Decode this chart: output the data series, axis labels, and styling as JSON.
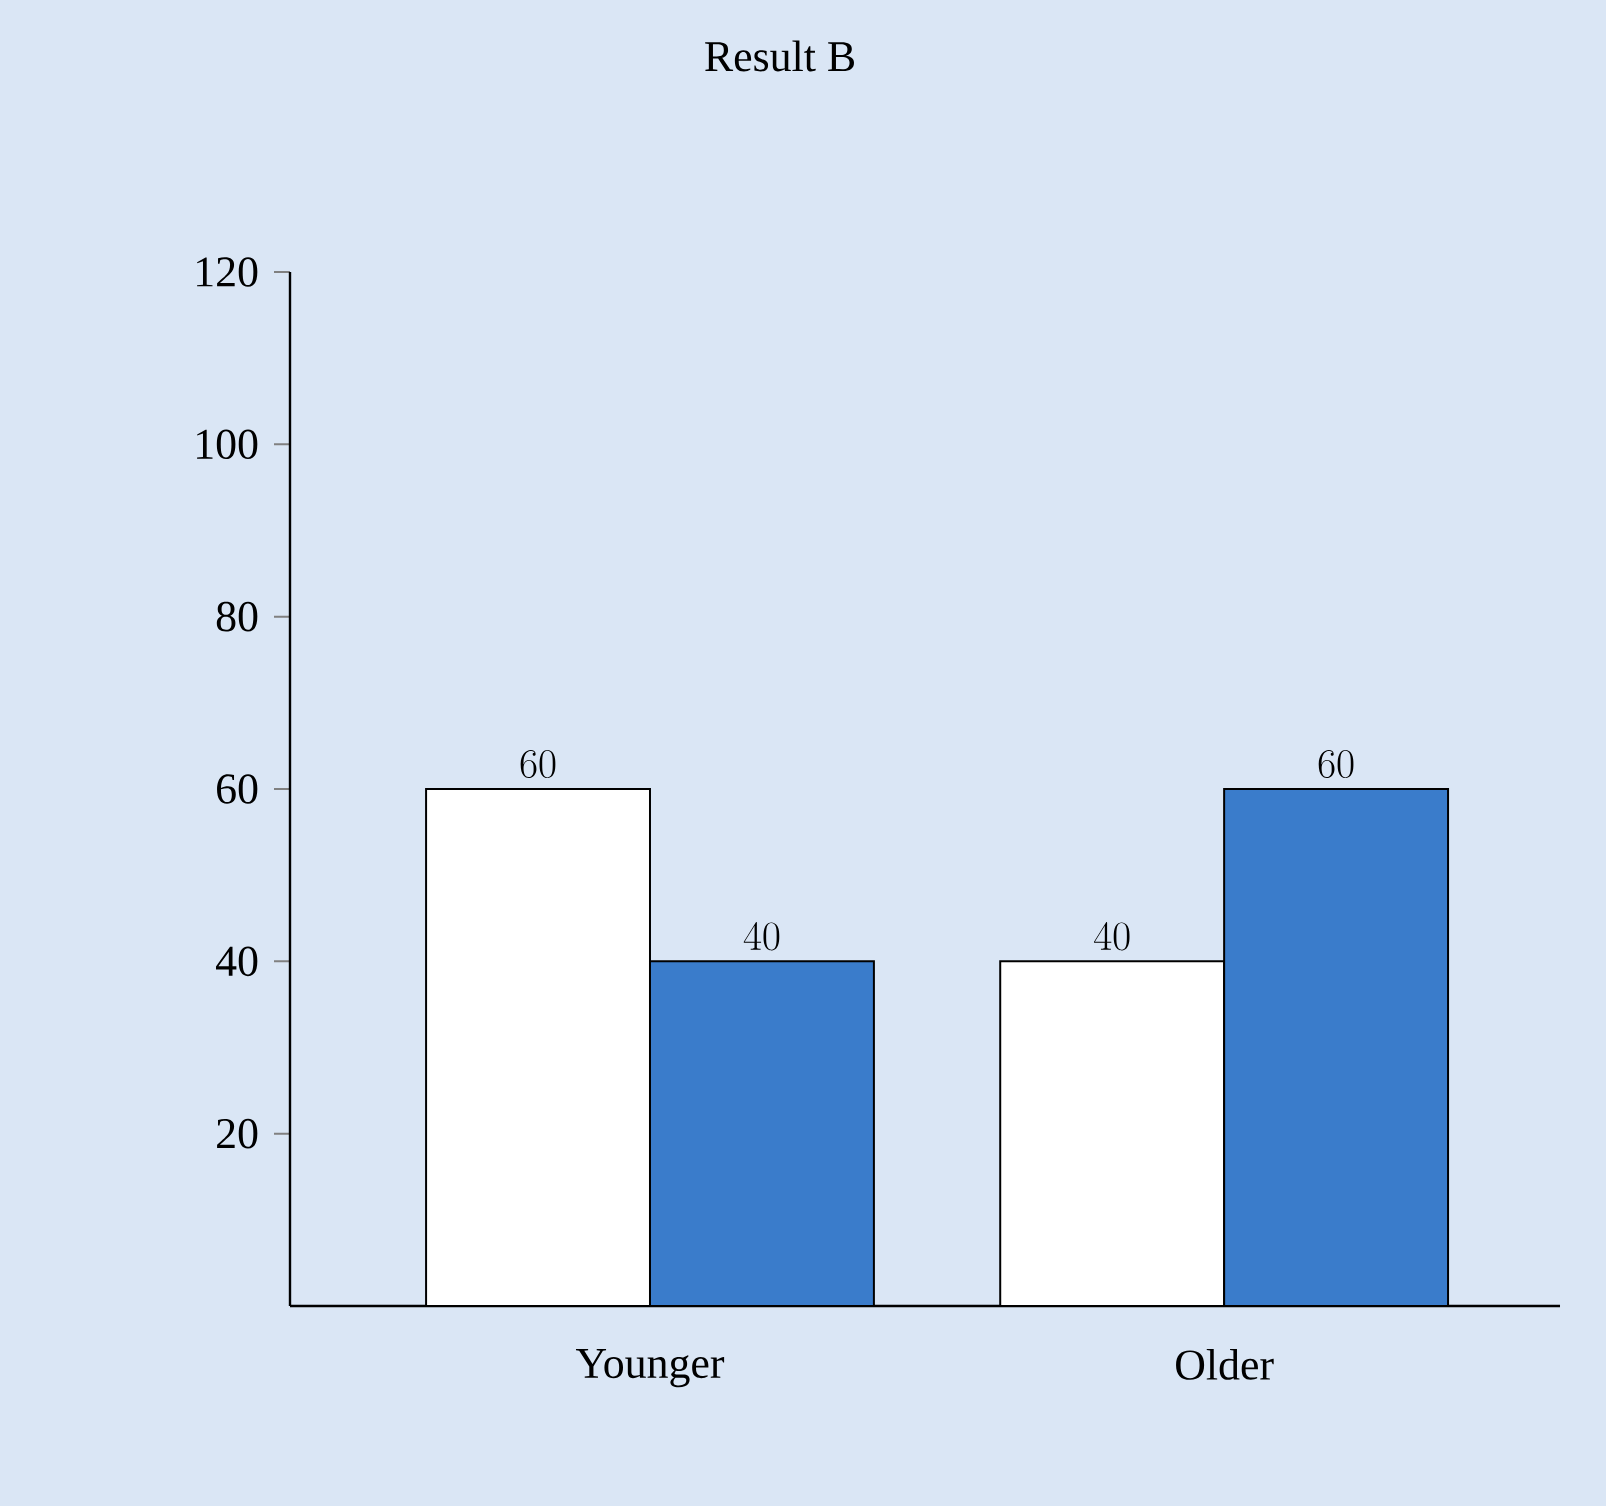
{
  "chart_data": {
    "type": "bar",
    "title": "Result B",
    "categories": [
      "Younger",
      "Older"
    ],
    "series": [
      {
        "color": "#ffffff",
        "values": [
          60,
          40
        ]
      },
      {
        "color": "#3a7ccb",
        "values": [
          40,
          60
        ]
      }
    ],
    "ylim": [
      0,
      120
    ],
    "yticks": [
      20,
      40,
      60,
      80,
      100,
      120
    ],
    "data_labels": true,
    "grid": false
  }
}
